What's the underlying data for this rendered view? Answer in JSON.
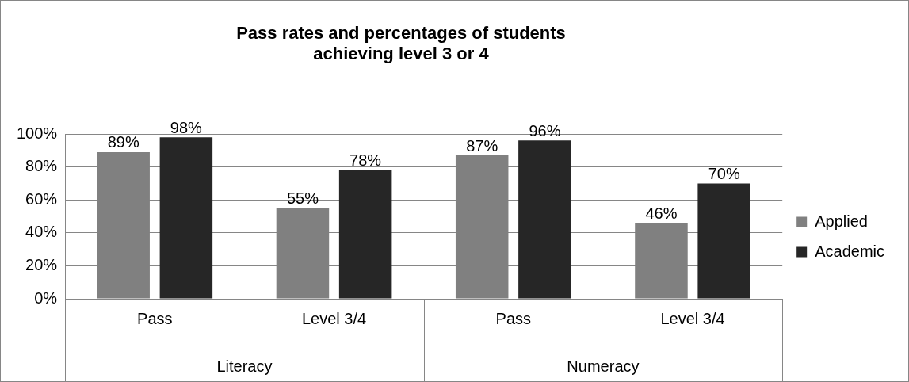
{
  "chart_data": {
    "type": "bar",
    "title": "Pass rates and percentages of students achieving level 3 or 4",
    "categories": [
      "Pass",
      "Level 3/4",
      "Pass",
      "Level 3/4"
    ],
    "series": [
      {
        "name": "Applied",
        "color": "#808080",
        "values": [
          89,
          55,
          87,
          46
        ],
        "value_labels": [
          "89%",
          "55%",
          "87%",
          "46%"
        ]
      },
      {
        "name": "Academic",
        "color": "#262626",
        "values": [
          98,
          78,
          96,
          70
        ],
        "value_labels": [
          "98%",
          "78%",
          "96%",
          "70%"
        ]
      }
    ],
    "annotations": [
      "Literacy",
      "Numeracy"
    ],
    "ylim": [
      0,
      100
    ],
    "yticks": [
      {
        "value": 0,
        "label": "0%"
      },
      {
        "value": 20,
        "label": "20%"
      },
      {
        "value": 40,
        "label": "40%"
      },
      {
        "value": 60,
        "label": "60%"
      },
      {
        "value": 80,
        "label": "80%"
      },
      {
        "value": 100,
        "label": "100%"
      }
    ],
    "grid": "y",
    "legend": "right"
  }
}
